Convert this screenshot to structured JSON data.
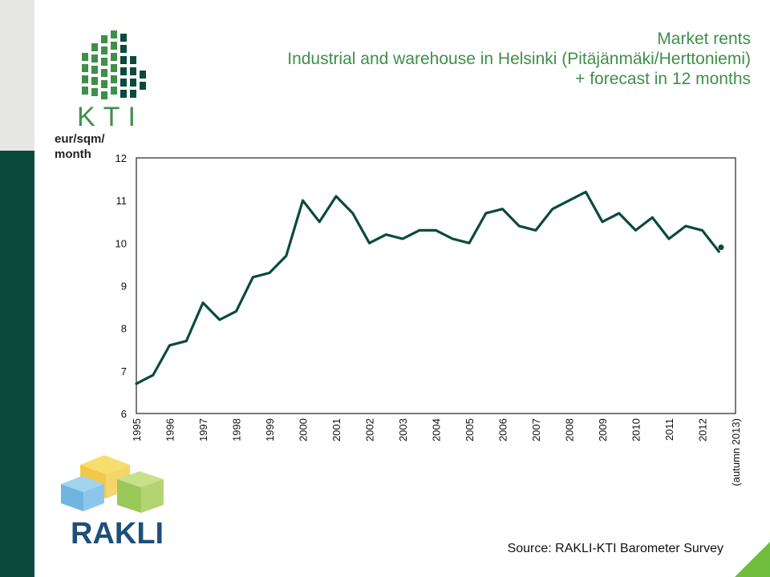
{
  "logos": {
    "top_text": "KTI",
    "bottom_text": "RAKLI"
  },
  "title_lines": [
    "Market rents",
    "Industrial and warehouse in Helsinki (Pitäjänmäki/Herttoniemi)",
    "+ forecast in 12 months"
  ],
  "source": "Source: RAKLI-KTI Barometer Survey",
  "colors": {
    "line": "#0b4a3d",
    "title": "#3f8f4a",
    "accent": "#6fbe3e"
  },
  "chart_data": {
    "type": "line",
    "ylabel_lines": [
      "eur/sqm/",
      "month"
    ],
    "ylim": [
      6,
      12
    ],
    "yticks": [
      6,
      7,
      8,
      9,
      10,
      11,
      12
    ],
    "xtick_labels": [
      "1995",
      "1996",
      "1997",
      "1998",
      "1999",
      "2000",
      "2001",
      "2002",
      "2003",
      "2004",
      "2005",
      "2006",
      "2007",
      "2008",
      "2009",
      "2010",
      "2011",
      "2012",
      "(autumn 2013)"
    ],
    "series": [
      {
        "x": [
          1995.0,
          1995.5,
          1996.0,
          1996.5,
          1997.0,
          1997.5,
          1998.0,
          1998.5,
          1999.0,
          1999.5,
          2000.0,
          2000.5,
          2001.0,
          2001.5,
          2002.0,
          2002.5,
          2003.0,
          2003.5,
          2004.0,
          2004.5,
          2005.0,
          2005.5,
          2006.0,
          2006.5,
          2007.0,
          2007.5,
          2008.0,
          2008.5,
          2009.0,
          2009.5,
          2010.0,
          2010.5,
          2011.0,
          2011.5,
          2012.0,
          2012.5
        ],
        "values": [
          6.7,
          6.9,
          7.6,
          7.7,
          8.6,
          8.2,
          8.4,
          9.2,
          9.3,
          9.7,
          11.0,
          10.5,
          11.1,
          10.7,
          10.0,
          10.2,
          10.1,
          10.3,
          10.3,
          10.1,
          10.0,
          10.7,
          10.8,
          10.4,
          10.3,
          10.8,
          11.0,
          11.2,
          10.5,
          10.7,
          10.3,
          10.6,
          10.1,
          10.4,
          10.3,
          9.8
        ]
      }
    ],
    "forecast": {
      "x": 2013.0,
      "value": 9.9
    },
    "grid": false,
    "legend": "none"
  }
}
